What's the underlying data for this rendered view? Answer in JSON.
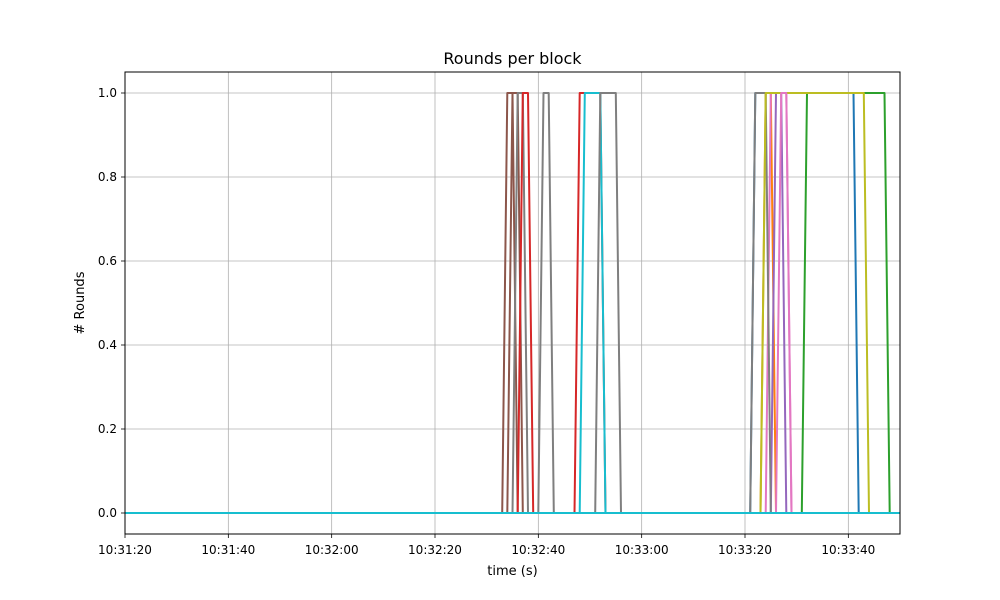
{
  "chart_data": {
    "type": "line",
    "title": "Rounds per block",
    "xlabel": "time (s)",
    "ylabel": "# Rounds",
    "x_axis": {
      "ticks": [
        "10:31:20",
        "10:31:40",
        "10:32:00",
        "10:32:20",
        "10:32:40",
        "10:33:00",
        "10:33:20",
        "10:33:40"
      ],
      "xlim": [
        "10:31:20",
        "10:33:50"
      ]
    },
    "y_axis": {
      "ticks": [
        "0.0",
        "0.2",
        "0.4",
        "0.6",
        "0.8",
        "1.0"
      ],
      "ylim": [
        -0.05,
        1.05
      ]
    },
    "grid": true,
    "series": [
      {
        "color": "#1f77b4",
        "points": [
          [
            "10:31:20",
            0
          ],
          [
            "10:33:21",
            0
          ],
          [
            "10:33:22",
            1
          ],
          [
            "10:33:41",
            1
          ],
          [
            "10:33:42",
            0
          ],
          [
            "10:33:50",
            0
          ]
        ]
      },
      {
        "color": "#ff7f0e",
        "points": [
          [
            "10:31:20",
            0
          ],
          [
            "10:33:23",
            0
          ],
          [
            "10:33:24",
            1
          ],
          [
            "10:33:25",
            1
          ],
          [
            "10:33:26",
            0
          ],
          [
            "10:33:50",
            0
          ]
        ]
      },
      {
        "color": "#2ca02c",
        "points": [
          [
            "10:31:20",
            0
          ],
          [
            "10:33:31",
            0
          ],
          [
            "10:33:32",
            1
          ],
          [
            "10:33:47",
            1
          ],
          [
            "10:33:48",
            0
          ],
          [
            "10:33:50",
            0
          ]
        ]
      },
      {
        "color": "#d62728",
        "points": [
          [
            "10:31:20",
            0
          ],
          [
            "10:32:47",
            0
          ],
          [
            "10:32:48",
            1
          ],
          [
            "10:32:52",
            1
          ],
          [
            "10:32:53",
            0
          ],
          [
            "10:33:50",
            0
          ]
        ]
      },
      {
        "color": "#9467bd",
        "points": [
          [
            "10:31:20",
            0
          ],
          [
            "10:33:25",
            0
          ],
          [
            "10:33:26",
            1
          ],
          [
            "10:33:27",
            1
          ],
          [
            "10:33:28",
            0
          ],
          [
            "10:33:50",
            0
          ]
        ]
      },
      {
        "color": "#8c564b",
        "points": [
          [
            "10:31:20",
            0
          ],
          [
            "10:32:33",
            0
          ],
          [
            "10:32:34",
            1
          ],
          [
            "10:32:35",
            1
          ],
          [
            "10:32:36",
            0
          ],
          [
            "10:33:50",
            0
          ]
        ]
      },
      {
        "color": "#e377c2",
        "points": [
          [
            "10:31:20",
            0
          ],
          [
            "10:33:24",
            0
          ],
          [
            "10:33:25",
            1
          ],
          [
            "10:33:28",
            1
          ],
          [
            "10:33:29",
            0
          ],
          [
            "10:33:50",
            0
          ]
        ]
      },
      {
        "color": "#7f7f7f",
        "points": [
          [
            "10:31:20",
            0
          ],
          [
            "10:33:21",
            0
          ],
          [
            "10:33:22",
            1
          ],
          [
            "10:33:24",
            1
          ],
          [
            "10:33:25",
            0
          ],
          [
            "10:33:50",
            0
          ]
        ]
      },
      {
        "color": "#bcbd22",
        "points": [
          [
            "10:31:20",
            0
          ],
          [
            "10:33:23",
            0
          ],
          [
            "10:33:24",
            1
          ],
          [
            "10:33:43",
            1
          ],
          [
            "10:33:44",
            0
          ],
          [
            "10:33:50",
            0
          ]
        ]
      },
      {
        "color": "#17becf",
        "points": [
          [
            "10:31:20",
            0
          ],
          [
            "10:32:48",
            0
          ],
          [
            "10:32:49",
            1
          ],
          [
            "10:32:52",
            1
          ],
          [
            "10:32:53",
            0
          ],
          [
            "10:33:50",
            0
          ]
        ]
      },
      {
        "color": "#8c564b",
        "points": [
          [
            "10:31:20",
            0
          ],
          [
            "10:32:34",
            0
          ],
          [
            "10:32:35",
            1
          ],
          [
            "10:32:36",
            1
          ],
          [
            "10:32:37",
            0
          ],
          [
            "10:33:50",
            0
          ]
        ]
      },
      {
        "color": "#7f7f7f",
        "points": [
          [
            "10:31:20",
            0
          ],
          [
            "10:32:35",
            0
          ],
          [
            "10:32:36",
            1
          ],
          [
            "10:32:37",
            1
          ],
          [
            "10:32:38",
            0
          ],
          [
            "10:33:50",
            0
          ]
        ]
      },
      {
        "color": "#d62728",
        "points": [
          [
            "10:31:20",
            0
          ],
          [
            "10:32:36",
            0
          ],
          [
            "10:32:37",
            1
          ],
          [
            "10:32:38",
            1
          ],
          [
            "10:32:39",
            0
          ],
          [
            "10:33:50",
            0
          ]
        ]
      },
      {
        "color": "#7f7f7f",
        "points": [
          [
            "10:31:20",
            0
          ],
          [
            "10:32:40",
            0
          ],
          [
            "10:32:41",
            1
          ],
          [
            "10:32:42",
            1
          ],
          [
            "10:32:43",
            0
          ],
          [
            "10:33:50",
            0
          ]
        ]
      },
      {
        "color": "#7f7f7f",
        "points": [
          [
            "10:31:20",
            0
          ],
          [
            "10:32:51",
            0
          ],
          [
            "10:32:52",
            1
          ],
          [
            "10:32:55",
            1
          ],
          [
            "10:32:56",
            0
          ],
          [
            "10:33:50",
            0
          ]
        ]
      },
      {
        "color": "#e377c2",
        "points": [
          [
            "10:31:20",
            0
          ],
          [
            "10:33:26",
            0
          ],
          [
            "10:33:27",
            1
          ],
          [
            "10:33:28",
            1
          ],
          [
            "10:33:29",
            0
          ],
          [
            "10:33:50",
            0
          ]
        ]
      },
      {
        "color": "#17becf",
        "points": [
          [
            "10:31:20",
            0
          ],
          [
            "10:33:50",
            0
          ]
        ]
      }
    ]
  }
}
